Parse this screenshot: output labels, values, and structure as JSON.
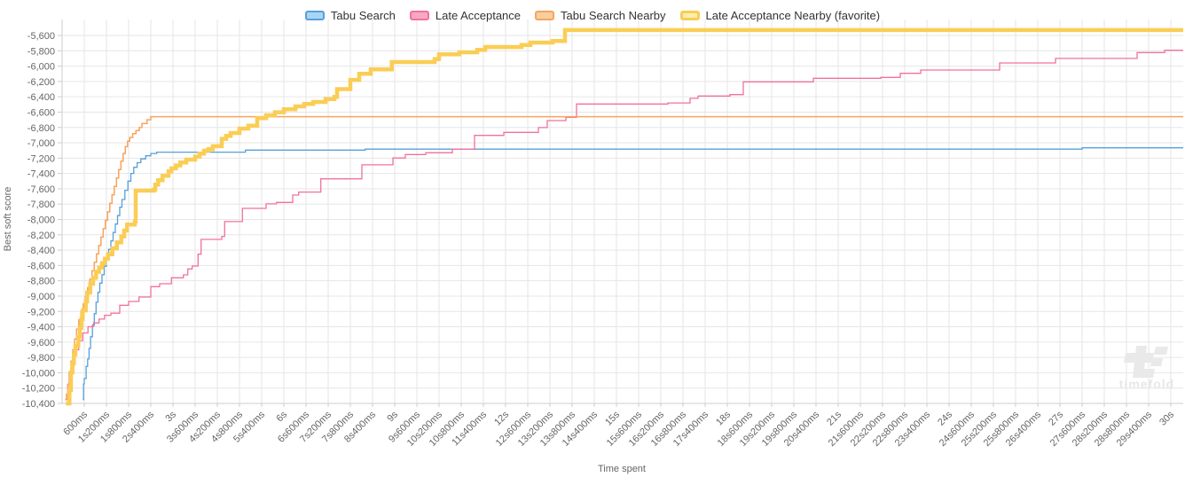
{
  "watermark": {
    "text": "timefold"
  },
  "axes": {
    "x_title": "Time spent",
    "y_title": "Best soft score",
    "x_tick_labels": [
      "600ms",
      "1s200ms",
      "1s800ms",
      "2s400ms",
      "3s",
      "3s600ms",
      "4s200ms",
      "4s800ms",
      "5s400ms",
      "6s",
      "6s600ms",
      "7s200ms",
      "7s800ms",
      "8s400ms",
      "9s",
      "9s600ms",
      "10s200ms",
      "10s800ms",
      "11s400ms",
      "12s",
      "12s600ms",
      "13s200ms",
      "13s800ms",
      "14s400ms",
      "15s",
      "15s600ms",
      "16s200ms",
      "16s800ms",
      "17s400ms",
      "18s",
      "18s600ms",
      "19s200ms",
      "19s800ms",
      "20s400ms",
      "21s",
      "21s600ms",
      "22s200ms",
      "22s800ms",
      "23s400ms",
      "24s",
      "24s600ms",
      "25s200ms",
      "25s800ms",
      "26s400ms",
      "27s",
      "27s600ms",
      "28s200ms",
      "28s800ms",
      "29s400ms",
      "30s"
    ],
    "y_tick_labels": [
      "-5,600",
      "-5,800",
      "-6,000",
      "-6,200",
      "-6,400",
      "-6,600",
      "-6,800",
      "-7,000",
      "-7,200",
      "-7,400",
      "-7,600",
      "-7,800",
      "-8,000",
      "-8,200",
      "-8,400",
      "-8,600",
      "-8,800",
      "-9,000",
      "-9,200",
      "-9,400",
      "-9,600",
      "-9,800",
      "-10,000",
      "-10,200",
      "-10,400"
    ]
  },
  "colors": {
    "grid": "#e6e6e6",
    "axis_line": "#cccccc",
    "tick_text": "#666666",
    "axis_title_text": "#666666",
    "legend_text": "#333333",
    "watermark_gray": "#e9e9e9"
  },
  "chart_data": {
    "type": "line",
    "step": true,
    "title": "",
    "xlabel": "Time spent",
    "ylabel": "Best soft score",
    "xlim_ms": [
      0,
      30280
    ],
    "ylim": [
      -10400,
      -5600
    ],
    "y_tick_step": 200,
    "x_tick_step_ms": 600,
    "grid": true,
    "legend_position": "top",
    "series": [
      {
        "name": "Tabu Search",
        "color": "#57a0d9",
        "fill": "#a9d5f5",
        "width": 1.3,
        "points": [
          [
            560,
            -10350
          ],
          [
            580,
            -10145
          ],
          [
            600,
            -10075
          ],
          [
            650,
            -9917
          ],
          [
            690,
            -9821
          ],
          [
            730,
            -9682
          ],
          [
            770,
            -9530
          ],
          [
            820,
            -9380
          ],
          [
            870,
            -9230
          ],
          [
            920,
            -9080
          ],
          [
            970,
            -8950
          ],
          [
            1020,
            -8830
          ],
          [
            1080,
            -8720
          ],
          [
            1140,
            -8610
          ],
          [
            1200,
            -8500
          ],
          [
            1260,
            -8390
          ],
          [
            1320,
            -8280
          ],
          [
            1380,
            -8170
          ],
          [
            1440,
            -8060
          ],
          [
            1500,
            -7950
          ],
          [
            1560,
            -7840
          ],
          [
            1620,
            -7740
          ],
          [
            1700,
            -7620
          ],
          [
            1780,
            -7500
          ],
          [
            1860,
            -7400
          ],
          [
            1940,
            -7320
          ],
          [
            2030,
            -7260
          ],
          [
            2130,
            -7210
          ],
          [
            2260,
            -7170
          ],
          [
            2400,
            -7140
          ],
          [
            2560,
            -7122
          ],
          [
            4960,
            -7095
          ],
          [
            8200,
            -7083
          ],
          [
            27600,
            -7065
          ]
        ]
      },
      {
        "name": "Late Acceptance",
        "color": "#f2719c",
        "fill": "#f8a8c2",
        "width": 1.3,
        "points": [
          [
            100,
            -10350
          ],
          [
            150,
            -10150
          ],
          [
            190,
            -9995
          ],
          [
            250,
            -9850
          ],
          [
            350,
            -9700
          ],
          [
            450,
            -9580
          ],
          [
            560,
            -9480
          ],
          [
            700,
            -9400
          ],
          [
            850,
            -9350
          ],
          [
            1000,
            -9300
          ],
          [
            1150,
            -9250
          ],
          [
            1320,
            -9223
          ],
          [
            1560,
            -9120
          ],
          [
            1800,
            -9070
          ],
          [
            2081,
            -9012
          ],
          [
            2400,
            -8877
          ],
          [
            2640,
            -8838
          ],
          [
            2959,
            -8761
          ],
          [
            3281,
            -8723
          ],
          [
            3401,
            -8645
          ],
          [
            3521,
            -8607
          ],
          [
            3679,
            -8453
          ],
          [
            3761,
            -8260
          ],
          [
            4320,
            -8221
          ],
          [
            4399,
            -8028
          ],
          [
            4879,
            -7855
          ],
          [
            5520,
            -7797
          ],
          [
            5801,
            -7778
          ],
          [
            6240,
            -7682
          ],
          [
            6401,
            -7643
          ],
          [
            7001,
            -7470
          ],
          [
            8112,
            -7288
          ],
          [
            8952,
            -7199
          ],
          [
            9288,
            -7153
          ],
          [
            9840,
            -7130
          ],
          [
            10560,
            -7083
          ],
          [
            11160,
            -6903
          ],
          [
            11952,
            -6864
          ],
          [
            12888,
            -6802
          ],
          [
            13128,
            -6710
          ],
          [
            13632,
            -6667
          ],
          [
            13920,
            -6494
          ],
          [
            16392,
            -6480
          ],
          [
            16992,
            -6420
          ],
          [
            17208,
            -6390
          ],
          [
            18072,
            -6371
          ],
          [
            18432,
            -6205
          ],
          [
            20328,
            -6159
          ],
          [
            22152,
            -6147
          ],
          [
            22680,
            -6094
          ],
          [
            23232,
            -6051
          ],
          [
            25368,
            -5958
          ],
          [
            26880,
            -5900
          ],
          [
            29088,
            -5823
          ],
          [
            29832,
            -5793
          ]
        ]
      },
      {
        "name": "Tabu Search Nearby",
        "color": "#f7a45c",
        "fill": "#facfa0",
        "width": 1.5,
        "points": [
          [
            80,
            -10350
          ],
          [
            120,
            -10280
          ],
          [
            160,
            -10150
          ],
          [
            200,
            -10000
          ],
          [
            240,
            -9850
          ],
          [
            290,
            -9700
          ],
          [
            340,
            -9560
          ],
          [
            390,
            -9430
          ],
          [
            450,
            -9310
          ],
          [
            510,
            -9200
          ],
          [
            570,
            -9100
          ],
          [
            630,
            -9000
          ],
          [
            690,
            -8890
          ],
          [
            750,
            -8780
          ],
          [
            810,
            -8670
          ],
          [
            870,
            -8560
          ],
          [
            930,
            -8450
          ],
          [
            990,
            -8340
          ],
          [
            1050,
            -8230
          ],
          [
            1110,
            -8120
          ],
          [
            1170,
            -8010
          ],
          [
            1230,
            -7900
          ],
          [
            1290,
            -7790
          ],
          [
            1350,
            -7680
          ],
          [
            1410,
            -7570
          ],
          [
            1470,
            -7460
          ],
          [
            1530,
            -7350
          ],
          [
            1590,
            -7240
          ],
          [
            1650,
            -7140
          ],
          [
            1710,
            -7050
          ],
          [
            1770,
            -6980
          ],
          [
            1830,
            -6930
          ],
          [
            1910,
            -6880
          ],
          [
            2000,
            -6840
          ],
          [
            2090,
            -6800
          ],
          [
            2160,
            -6750
          ],
          [
            2300,
            -6700
          ],
          [
            2400,
            -6660
          ]
        ]
      },
      {
        "name": "Late Acceptance Nearby (favorite)",
        "color": "#facd55",
        "fill": "#fbefaf",
        "width": 4.5,
        "points": [
          [
            100,
            -10400
          ],
          [
            199,
            -10226
          ],
          [
            240,
            -9995
          ],
          [
            281,
            -9879
          ],
          [
            319,
            -9763
          ],
          [
            360,
            -9647
          ],
          [
            439,
            -9532
          ],
          [
            480,
            -9416
          ],
          [
            521,
            -9300
          ],
          [
            559,
            -9185
          ],
          [
            641,
            -9070
          ],
          [
            679,
            -8954
          ],
          [
            761,
            -8838
          ],
          [
            840,
            -8761
          ],
          [
            919,
            -8684
          ],
          [
            1001,
            -8627
          ],
          [
            1080,
            -8569
          ],
          [
            1159,
            -8511
          ],
          [
            1241,
            -8453
          ],
          [
            1361,
            -8376
          ],
          [
            1481,
            -8299
          ],
          [
            1601,
            -8221
          ],
          [
            1680,
            -8144
          ],
          [
            1759,
            -8066
          ],
          [
            1968,
            -8028
          ],
          [
            1992,
            -7624
          ],
          [
            2479,
            -7612
          ],
          [
            2520,
            -7546
          ],
          [
            2599,
            -7488
          ],
          [
            2719,
            -7431
          ],
          [
            2880,
            -7373
          ],
          [
            2959,
            -7334
          ],
          [
            3079,
            -7296
          ],
          [
            3199,
            -7257
          ],
          [
            3360,
            -7219
          ],
          [
            3600,
            -7180
          ],
          [
            3720,
            -7141
          ],
          [
            3840,
            -7103
          ],
          [
            3960,
            -7083
          ],
          [
            4080,
            -7045
          ],
          [
            4320,
            -6949
          ],
          [
            4440,
            -6910
          ],
          [
            4560,
            -6872
          ],
          [
            4800,
            -6814
          ],
          [
            5040,
            -6776
          ],
          [
            5280,
            -6679
          ],
          [
            5520,
            -6641
          ],
          [
            5760,
            -6602
          ],
          [
            6000,
            -6564
          ],
          [
            6312,
            -6525
          ],
          [
            6552,
            -6494
          ],
          [
            6792,
            -6467
          ],
          [
            7128,
            -6429
          ],
          [
            7368,
            -6401
          ],
          [
            7440,
            -6300
          ],
          [
            7800,
            -6180
          ],
          [
            8040,
            -6100
          ],
          [
            8352,
            -6043
          ],
          [
            8921,
            -5947
          ],
          [
            10080,
            -5908
          ],
          [
            10200,
            -5846
          ],
          [
            10752,
            -5820
          ],
          [
            11232,
            -5789
          ],
          [
            11448,
            -5750
          ],
          [
            12432,
            -5724
          ],
          [
            12672,
            -5692
          ],
          [
            13272,
            -5673
          ],
          [
            13608,
            -5530
          ]
        ]
      }
    ]
  }
}
